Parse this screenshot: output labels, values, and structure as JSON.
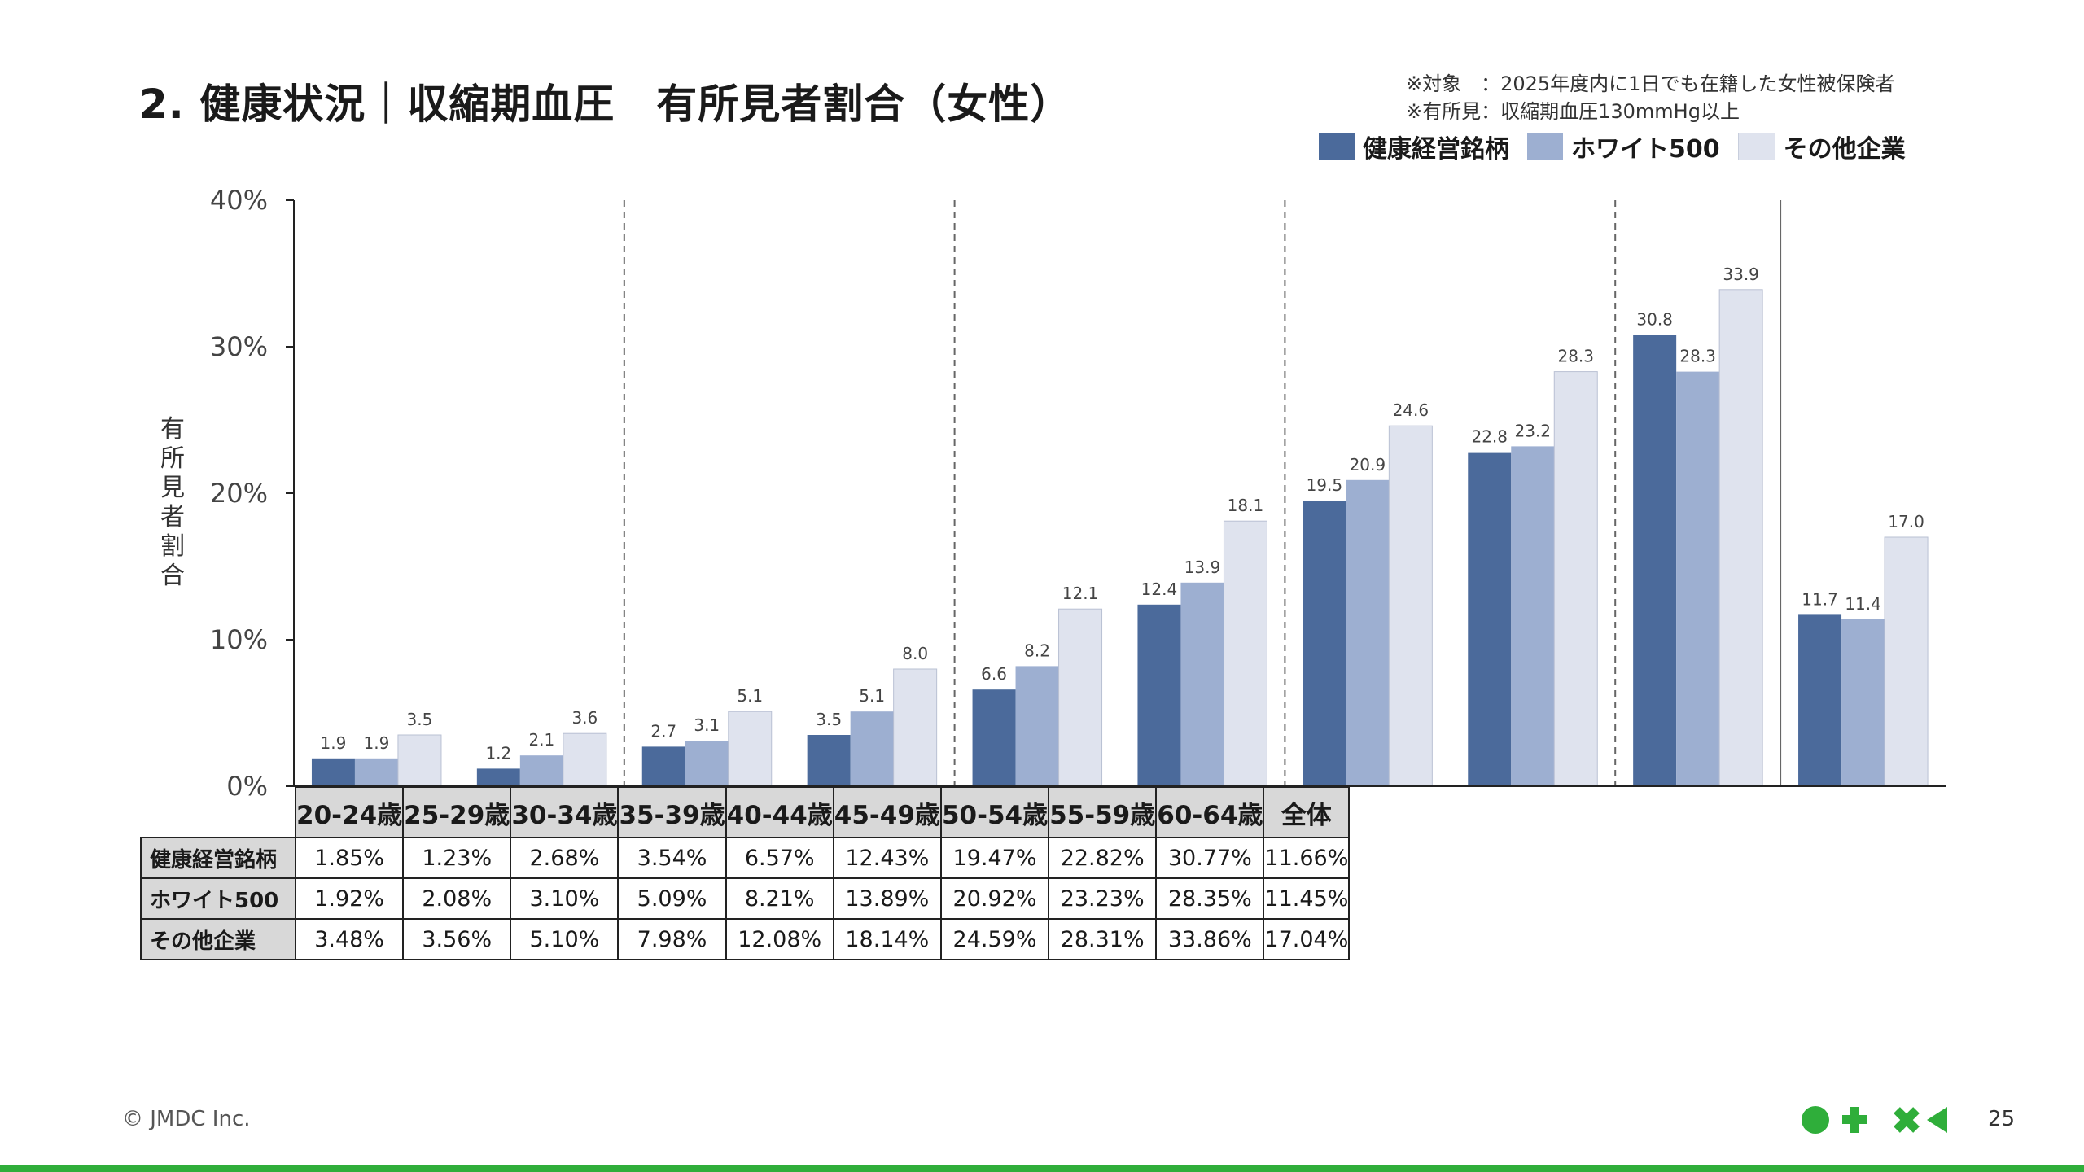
{
  "title": "2. 健康状況｜収縮期血圧　有所見者割合（女性）",
  "notes": [
    "※対象　：2025年度内に1日でも在籍した女性被保険者",
    "※有所見：収縮期血圧130mmHg以上"
  ],
  "y_axis_title": "有所見者割合",
  "footer": {
    "copyright": "© JMDC Inc.",
    "page": "25"
  },
  "colors": {
    "series1": "#4b6a9b",
    "series2": "#9dafd1",
    "series3": "#dfe3ee",
    "brand_green": "#2fae3a"
  },
  "chart_data": {
    "type": "bar",
    "categories": [
      "20-24歳",
      "25-29歳",
      "30-34歳",
      "35-39歳",
      "40-44歳",
      "45-49歳",
      "50-54歳",
      "55-59歳",
      "60-64歳",
      "全体"
    ],
    "series": [
      {
        "name": "健康経営銘柄",
        "values": [
          1.9,
          1.2,
          2.7,
          3.5,
          6.6,
          12.4,
          19.5,
          22.8,
          30.8,
          11.7
        ],
        "table": [
          "1.85%",
          "1.23%",
          "2.68%",
          "3.54%",
          "6.57%",
          "12.43%",
          "19.47%",
          "22.82%",
          "30.77%",
          "11.66%"
        ]
      },
      {
        "name": "ホワイト500",
        "values": [
          1.9,
          2.1,
          3.1,
          5.1,
          8.2,
          13.9,
          20.9,
          23.2,
          28.3,
          11.4
        ],
        "table": [
          "1.92%",
          "2.08%",
          "3.10%",
          "5.09%",
          "8.21%",
          "13.89%",
          "20.92%",
          "23.23%",
          "28.35%",
          "11.45%"
        ]
      },
      {
        "name": "その他企業",
        "values": [
          3.5,
          3.6,
          5.1,
          8.0,
          12.1,
          18.1,
          24.6,
          28.3,
          33.9,
          17.0
        ],
        "table": [
          "3.48%",
          "3.56%",
          "5.10%",
          "7.98%",
          "12.08%",
          "18.14%",
          "24.59%",
          "28.31%",
          "33.86%",
          "17.04%"
        ]
      }
    ],
    "yticks": [
      "0%",
      "10%",
      "20%",
      "30%",
      "40%"
    ],
    "ylim": [
      0,
      40
    ],
    "ylabel": "有所見者割合",
    "legend": "top-right"
  }
}
